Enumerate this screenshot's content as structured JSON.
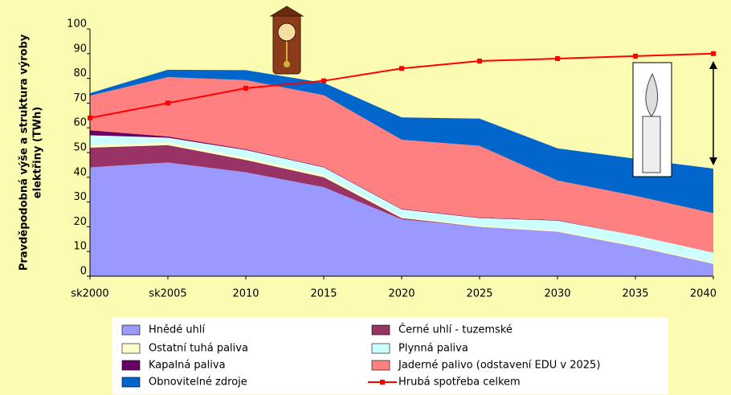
{
  "chart_data": {
    "type": "stacked-area",
    "ylabel": [
      "Pravděpodobná výše a struktura výroby",
      "elektřiny (TWh)"
    ],
    "categories": [
      "sk2000",
      "sk2005",
      "2010",
      "2015",
      "2020",
      "2025",
      "2030",
      "2035",
      "2040"
    ],
    "ylim": [
      0,
      100
    ],
    "yticks": [
      0,
      10,
      20,
      30,
      40,
      50,
      60,
      70,
      80,
      90,
      100
    ],
    "series": [
      {
        "name": "Hnědé uhlí",
        "color": "#9999ff",
        "values": [
          44,
          46,
          42,
          36,
          23,
          20,
          18,
          12,
          5
        ]
      },
      {
        "name": "Černé uhlí - tuzemské",
        "color": "#993366",
        "values": [
          8,
          7,
          5,
          4,
          0.5,
          0,
          0,
          0,
          0
        ]
      },
      {
        "name": "Ostatní tuhá paliva",
        "color": "#ffffcc",
        "values": [
          1,
          1,
          1,
          1,
          0.5,
          0.5,
          0.5,
          0.5,
          0.5
        ]
      },
      {
        "name": "Plynná paliva",
        "color": "#ccffff",
        "values": [
          4,
          2,
          3,
          3,
          3,
          3,
          4,
          4,
          4
        ]
      },
      {
        "name": "Kapalná paliva",
        "color": "#660066",
        "values": [
          2,
          0.5,
          0.3,
          0.2,
          0.2,
          0.2,
          0.2,
          0,
          0
        ]
      },
      {
        "name": "Jaderné palivo (odstavení EDU v 2025)",
        "color": "#ff8080",
        "values": [
          14,
          24,
          28,
          29,
          28,
          29,
          16,
          16,
          16
        ]
      },
      {
        "name": "Obnovitelné zdroje",
        "color": "#0066cc",
        "values": [
          1,
          3,
          4,
          5,
          9,
          11,
          13,
          15,
          18
        ]
      }
    ],
    "line": {
      "name": "Hrubá spotřeba celkem",
      "color": "#ff0000",
      "values": [
        64,
        70,
        76,
        79,
        84,
        87,
        88,
        89,
        90
      ]
    }
  }
}
